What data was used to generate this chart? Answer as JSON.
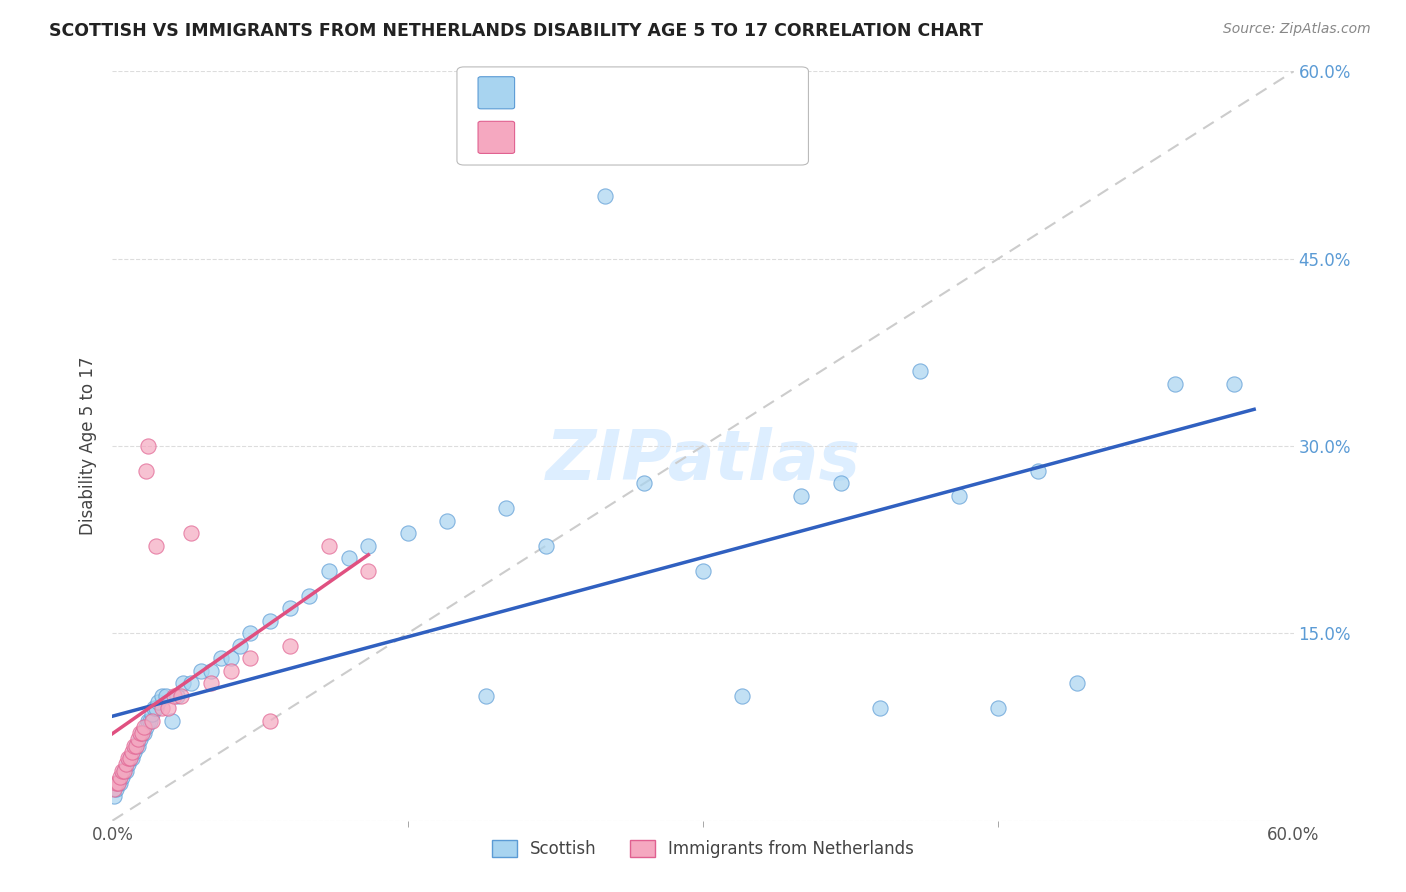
{
  "title": "SCOTTISH VS IMMIGRANTS FROM NETHERLANDS DISABILITY AGE 5 TO 17 CORRELATION CHART",
  "source": "Source: ZipAtlas.com",
  "ylabel": "Disability Age 5 to 17",
  "xlim": [
    0.0,
    0.6
  ],
  "ylim": [
    0.0,
    0.6
  ],
  "ytick_positions_right": [
    0.6,
    0.45,
    0.3,
    0.15
  ],
  "ytick_labels_right": [
    "60.0%",
    "45.0%",
    "30.0%",
    "15.0%"
  ],
  "watermark": "ZIPatlas",
  "scottish_color": "#A8D4F0",
  "netherlands_color": "#F5A8C0",
  "scottish_edge_color": "#5B9BD5",
  "netherlands_edge_color": "#E06090",
  "scottish_line_color": "#3060C0",
  "netherlands_line_color": "#E05080",
  "ref_line_color": "#CCCCCC",
  "right_tick_color": "#5B9BD5",
  "scottish_x": [
    0.001,
    0.002,
    0.003,
    0.004,
    0.005,
    0.006,
    0.007,
    0.008,
    0.009,
    0.01,
    0.011,
    0.012,
    0.013,
    0.014,
    0.015,
    0.016,
    0.017,
    0.018,
    0.019,
    0.02,
    0.021,
    0.022,
    0.023,
    0.025,
    0.027,
    0.03,
    0.033,
    0.036,
    0.04,
    0.045,
    0.05,
    0.055,
    0.06,
    0.065,
    0.07,
    0.08,
    0.09,
    0.1,
    0.11,
    0.12,
    0.13,
    0.15,
    0.17,
    0.19,
    0.2,
    0.22,
    0.25,
    0.27,
    0.3,
    0.32,
    0.35,
    0.37,
    0.39,
    0.41,
    0.43,
    0.45,
    0.47,
    0.49,
    0.54,
    0.57
  ],
  "scottish_y": [
    0.02,
    0.025,
    0.03,
    0.03,
    0.035,
    0.04,
    0.04,
    0.045,
    0.05,
    0.05,
    0.055,
    0.06,
    0.06,
    0.065,
    0.07,
    0.07,
    0.075,
    0.08,
    0.08,
    0.085,
    0.09,
    0.09,
    0.095,
    0.1,
    0.1,
    0.08,
    0.1,
    0.11,
    0.11,
    0.12,
    0.12,
    0.13,
    0.13,
    0.14,
    0.15,
    0.16,
    0.17,
    0.18,
    0.2,
    0.21,
    0.22,
    0.23,
    0.24,
    0.1,
    0.25,
    0.22,
    0.5,
    0.27,
    0.2,
    0.1,
    0.26,
    0.27,
    0.09,
    0.36,
    0.26,
    0.09,
    0.28,
    0.11,
    0.35,
    0.35
  ],
  "netherlands_x": [
    0.001,
    0.002,
    0.003,
    0.004,
    0.005,
    0.006,
    0.007,
    0.008,
    0.009,
    0.01,
    0.011,
    0.012,
    0.013,
    0.014,
    0.015,
    0.016,
    0.017,
    0.018,
    0.02,
    0.022,
    0.025,
    0.028,
    0.031,
    0.035,
    0.04,
    0.05,
    0.06,
    0.07,
    0.08,
    0.09,
    0.11,
    0.13
  ],
  "netherlands_y": [
    0.025,
    0.03,
    0.03,
    0.035,
    0.04,
    0.04,
    0.045,
    0.05,
    0.05,
    0.055,
    0.06,
    0.06,
    0.065,
    0.07,
    0.07,
    0.075,
    0.28,
    0.3,
    0.08,
    0.22,
    0.09,
    0.09,
    0.1,
    0.1,
    0.23,
    0.11,
    0.12,
    0.13,
    0.08,
    0.14,
    0.22,
    0.2
  ]
}
